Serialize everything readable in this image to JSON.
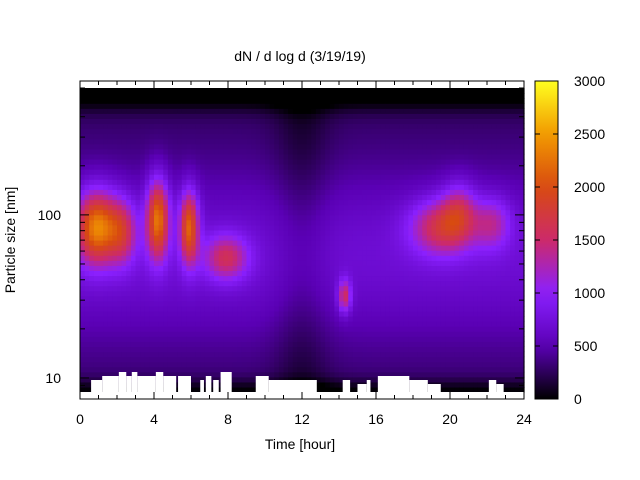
{
  "chart_data": {
    "type": "heatmap",
    "title": "dN / d log d (3/19/19)",
    "xlabel": "Time [hour]",
    "ylabel": "Particle size [nm]",
    "xlim": [
      0,
      24
    ],
    "ylim_nm": [
      8.2,
      600
    ],
    "y_scale": "log",
    "x_ticks": [
      "0",
      "4",
      "8",
      "12",
      "16",
      "20",
      "24"
    ],
    "x_tick_values": [
      0,
      4,
      8,
      12,
      16,
      20,
      24
    ],
    "y_ticks": [
      "10",
      "100"
    ],
    "y_tick_values": [
      10,
      100
    ],
    "colorbar": {
      "range": [
        0,
        3000
      ],
      "ticks": [
        "0",
        "500",
        "1000",
        "1500",
        "2000",
        "2500",
        "3000"
      ],
      "tick_values": [
        0,
        500,
        1000,
        1500,
        2000,
        2500,
        3000
      ],
      "palette": "black-purple-red-orange-yellow",
      "colors": [
        "#000000",
        "#5a00b4",
        "#8a20ff",
        "#cc2a6a",
        "#d84a10",
        "#f29a00",
        "#ffff20"
      ]
    },
    "approx_concentration_peaks": [
      {
        "time_hour": 1.2,
        "size_nm": 85,
        "value": 2500
      },
      {
        "time_hour": 4.2,
        "size_nm": 90,
        "value": 2450
      },
      {
        "time_hour": 5.8,
        "size_nm": 80,
        "value": 2300
      },
      {
        "time_hour": 14.3,
        "size_nm": 32,
        "value": 1750
      },
      {
        "time_hour": 20.5,
        "size_nm": 100,
        "value": 1950
      }
    ],
    "white_gaps_lower_edge": true
  }
}
